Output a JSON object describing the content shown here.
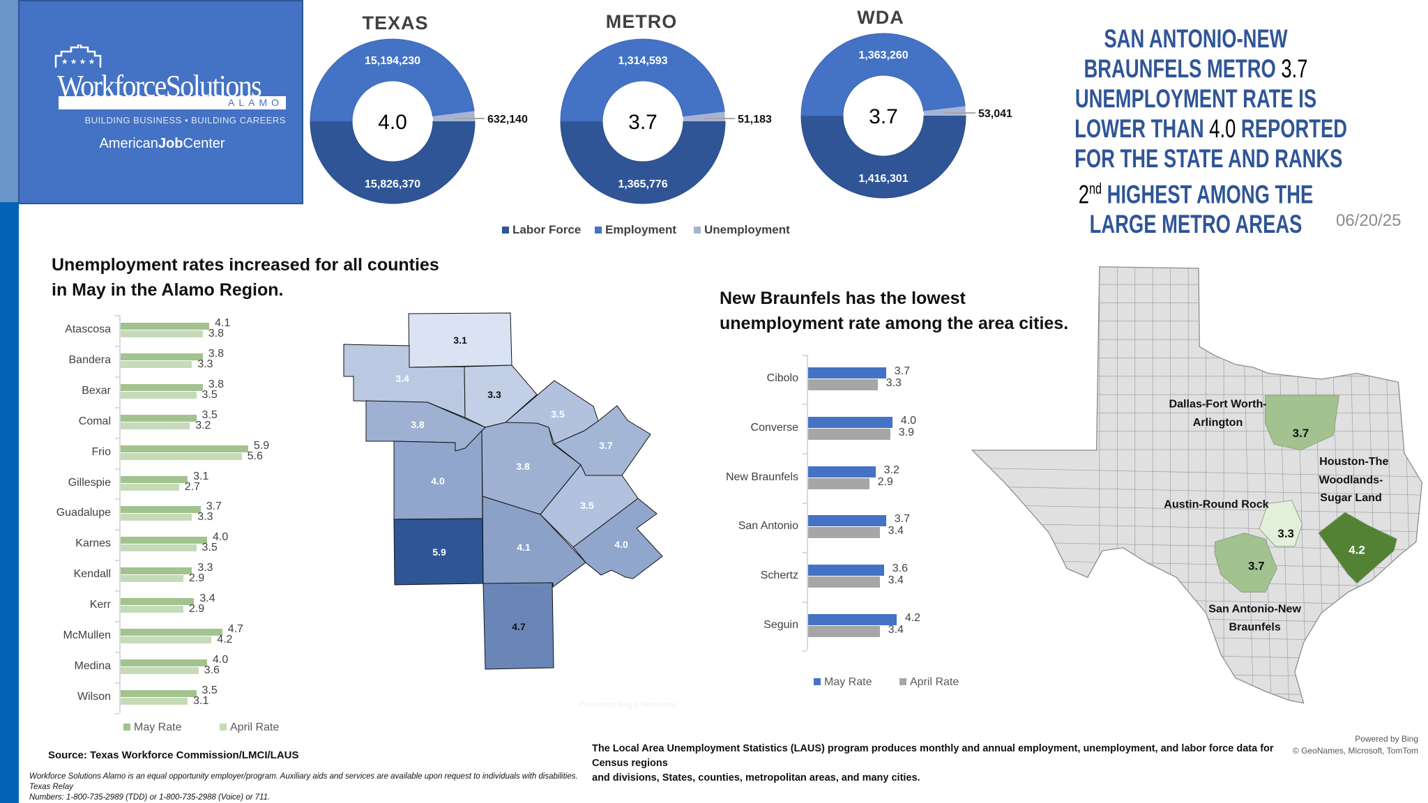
{
  "logo": {
    "brand": "WorkforceSolutions",
    "sub": "ALAMO",
    "tagline": "BUILDING BUSINESS • BUILDING CAREERS",
    "ajc_light": "American",
    "ajc_bold": "Job",
    "ajc_end": "Center"
  },
  "colors": {
    "labor_force": "#2f5597",
    "employment": "#4472c4",
    "unemployment": "#a5b4d6",
    "may_green": "#a2c28f",
    "april_green": "#c5dbb8",
    "may_blue": "#4472c4",
    "april_gray": "#a6a6a6"
  },
  "donut_legend": [
    "Labor Force",
    "Employment",
    "Unemployment"
  ],
  "headline": {
    "l1": "SAN ANTONIO-NEW",
    "l2a": "BRAUNFELS METRO ",
    "l2b": "3.7",
    "l3": "UNEMPLOYMENT RATE IS",
    "l4a": "LOWER THAN ",
    "l4b": "4.0",
    "l4c": " REPORTED",
    "l5": "FOR THE STATE AND RANKS",
    "l6a": "2",
    "l6sup": "nd",
    "l6b": " HIGHEST AMONG THE",
    "l7": "LARGE METRO AREAS"
  },
  "date": "06/20/25",
  "county_map": {
    "attribution": "Powered by Bing © GeoNames",
    "counties": [
      {
        "rate": "3.1"
      },
      {
        "rate": "3.4"
      },
      {
        "rate": "3.3"
      },
      {
        "rate": "3.8"
      },
      {
        "rate": "4.0"
      },
      {
        "rate": "5.9"
      },
      {
        "rate": "3.8"
      },
      {
        "rate": "3.5"
      },
      {
        "rate": "3.7"
      },
      {
        "rate": "3.5"
      },
      {
        "rate": "4.0"
      },
      {
        "rate": "4.1"
      },
      {
        "rate": "4.7"
      }
    ]
  },
  "texas_map": {
    "metros": [
      {
        "name": "Dallas-Fort Worth-Arlington",
        "l1": "Dallas-Fort Worth-",
        "l2": "Arlington",
        "rate": "3.7"
      },
      {
        "name": "Austin-Round Rock",
        "l1": "Austin-Round Rock",
        "rate": "3.3"
      },
      {
        "name": "Houston-The Woodlands-Sugar Land",
        "l1": "Houston-The",
        "l2": "Woodlands-",
        "l3": "Sugar Land",
        "rate": "4.2"
      },
      {
        "name": "San Antonio-New Braunfels",
        "l1": "San Antonio-New",
        "l2": "Braunfels",
        "rate": "3.7"
      }
    ],
    "attribution_1": "Powered by Bing",
    "attribution_2": "© GeoNames, Microsoft, TomTom"
  },
  "footer": {
    "source": "Source: Texas Workforce Commission/LMCI/LAUS",
    "disclaimer_1": "Workforce Solutions Alamo is an equal opportunity employer/program. Auxiliary aids and services are available upon request to individuals with disabilities. Texas Relay",
    "disclaimer_2": "Numbers: 1-800-735-2989 (TDD) or 1-800-735-2988 (Voice) or 711.",
    "laus_1": "The Local Area Unemployment Statistics (LAUS) program produces monthly and annual employment, unemployment, and labor force data for Census regions",
    "laus_2": "and divisions, States, counties, metropolitan areas, and many cities."
  },
  "chart_data": [
    {
      "type": "pie",
      "title": "TEXAS",
      "center_label": "4.0",
      "labels": [
        "Labor Force",
        "Employment",
        "Unemployment"
      ],
      "values": [
        15826370,
        15194230,
        632140
      ],
      "display": [
        "15,826,370",
        "15,194,230",
        "632,140"
      ]
    },
    {
      "type": "pie",
      "title": "METRO",
      "center_label": "3.7",
      "labels": [
        "Labor Force",
        "Employment",
        "Unemployment"
      ],
      "values": [
        1365776,
        1314593,
        51183
      ],
      "display": [
        "1,365,776",
        "1,314,593",
        "51,183"
      ]
    },
    {
      "type": "pie",
      "title": "WDA",
      "center_label": "3.7",
      "labels": [
        "Labor Force",
        "Employment",
        "Unemployment"
      ],
      "values": [
        1416301,
        1363260,
        53041
      ],
      "display": [
        "1,416,301",
        "1,363,260",
        "53,041"
      ]
    },
    {
      "type": "bar",
      "orientation": "horizontal",
      "title": "Unemployment rates increased for all counties in May in the Alamo Region.",
      "title_l1": "Unemployment rates increased for all counties",
      "title_l2": "in May in the Alamo Region.",
      "categories": [
        "Atascosa",
        "Bandera",
        "Bexar",
        "Comal",
        "Frio",
        "Gillespie",
        "Guadalupe",
        "Karnes",
        "Kendall",
        "Kerr",
        "McMullen",
        "Medina",
        "Wilson"
      ],
      "series": [
        {
          "name": "May Rate",
          "values": [
            4.1,
            3.8,
            3.8,
            3.5,
            5.9,
            3.1,
            3.7,
            4.0,
            3.3,
            3.4,
            4.7,
            4.0,
            3.5
          ]
        },
        {
          "name": "April Rate",
          "values": [
            3.8,
            3.3,
            3.5,
            3.2,
            5.6,
            2.7,
            3.3,
            3.5,
            2.9,
            2.9,
            4.2,
            3.6,
            3.1
          ]
        }
      ],
      "legend": "bottom",
      "grid": false
    },
    {
      "type": "bar",
      "orientation": "horizontal",
      "title": "New Braunfels has the lowest unemployment rate among the area cities.",
      "title_l1": "New Braunfels has the lowest",
      "title_l2": "unemployment rate among the area cities.",
      "categories": [
        "Cibolo",
        "Converse",
        "New Braunfels",
        "San Antonio",
        "Schertz",
        "Seguin"
      ],
      "series": [
        {
          "name": "May Rate",
          "values": [
            3.7,
            4.0,
            3.2,
            3.7,
            3.6,
            4.2
          ]
        },
        {
          "name": "April Rate",
          "values": [
            3.3,
            3.9,
            2.9,
            3.4,
            3.4,
            3.4
          ]
        }
      ],
      "legend": "bottom",
      "grid": false
    }
  ]
}
